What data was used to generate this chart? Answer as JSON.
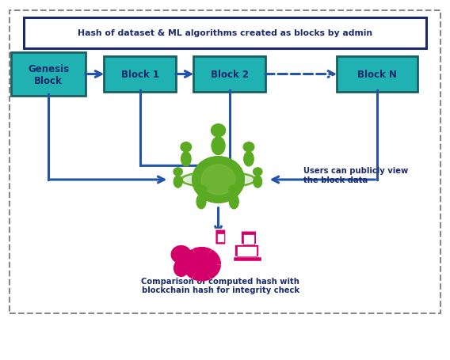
{
  "fig_width": 5.68,
  "fig_height": 4.56,
  "dpi": 100,
  "bg_color": "#ffffff",
  "outer_border_color": "#888888",
  "block_fill": "#20B2B2",
  "block_text_color": "#1a2a6c",
  "block_border_color": "#1a6060",
  "header_fill": "#ffffff",
  "header_border_color": "#1a2a6c",
  "arrow_color": "#2255aa",
  "green_color": "#5aaa22",
  "pink_color": "#d4006a",
  "blocks": [
    "Genesis\nBlock",
    "Block 1",
    "Block 2",
    "Block N"
  ],
  "header_text": "Hash of dataset & ML algorithms created as blocks by admin",
  "label_users": "Users can publicly view\nthe block data",
  "label_comparison": "Comparison of computed hash with\nblockchain hash for integrity check"
}
